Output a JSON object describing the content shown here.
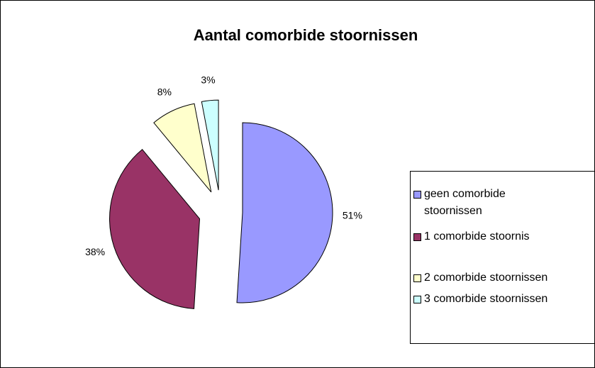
{
  "chart_data": {
    "type": "pie",
    "title": "Aantal comorbide stoornissen",
    "categories": [
      "geen comorbide stoornissen",
      "1 comorbide stoornis",
      "2 comorbide stoornissen",
      "3 comorbide stoornissen"
    ],
    "values": [
      51,
      38,
      8,
      3
    ],
    "value_labels": [
      "51%",
      "38%",
      "8%",
      "3%"
    ],
    "colors": [
      "#9999ff",
      "#993366",
      "#ffffcc",
      "#ccffff"
    ],
    "legend": "right"
  }
}
